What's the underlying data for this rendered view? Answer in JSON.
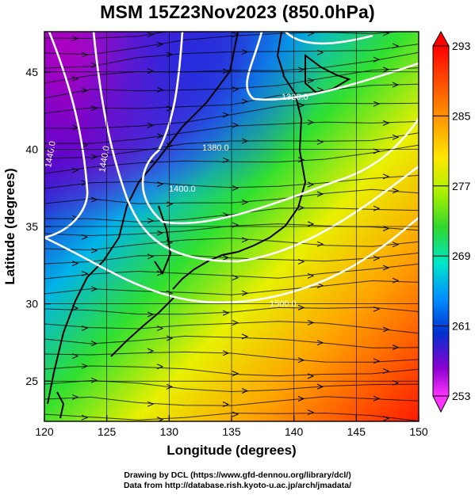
{
  "title": "MSM 15Z23Nov2023 (850.0hPa)",
  "map": {
    "x_axis_title": "Longitude (degrees)",
    "y_axis_title": "Latitude  (degrees)",
    "lon_range": [
      120,
      150
    ],
    "lat_range": [
      22.4,
      47.6
    ],
    "lon_ticks": [
      "120",
      "125",
      "130",
      "135",
      "140",
      "145",
      "150"
    ],
    "lat_ticks": [
      "25",
      "30",
      "35",
      "40",
      "45"
    ],
    "grid": true,
    "contour_labels": [
      "1440.0",
      "1440.0",
      "1380.0",
      "1320.0",
      "1400.0",
      "1500.0"
    ]
  },
  "colorbar": {
    "range": [
      253,
      293
    ],
    "tick_labels": [
      "293",
      "285",
      "277",
      "269",
      "261",
      "253"
    ],
    "colors": [
      "#ff0000",
      "#ff6a00",
      "#ffb000",
      "#ffee00",
      "#a6f000",
      "#2fd92f",
      "#00e6c8",
      "#0090ff",
      "#0030d0",
      "#8a00d0",
      "#ff33ff"
    ]
  },
  "credits": {
    "line1": "Drawing by DCL (https://www.gfd-dennou.org/library/dcl/)",
    "line2": "Data from http://database.rish.kyoto-u.ac.jp/arch/jmadata/"
  }
}
